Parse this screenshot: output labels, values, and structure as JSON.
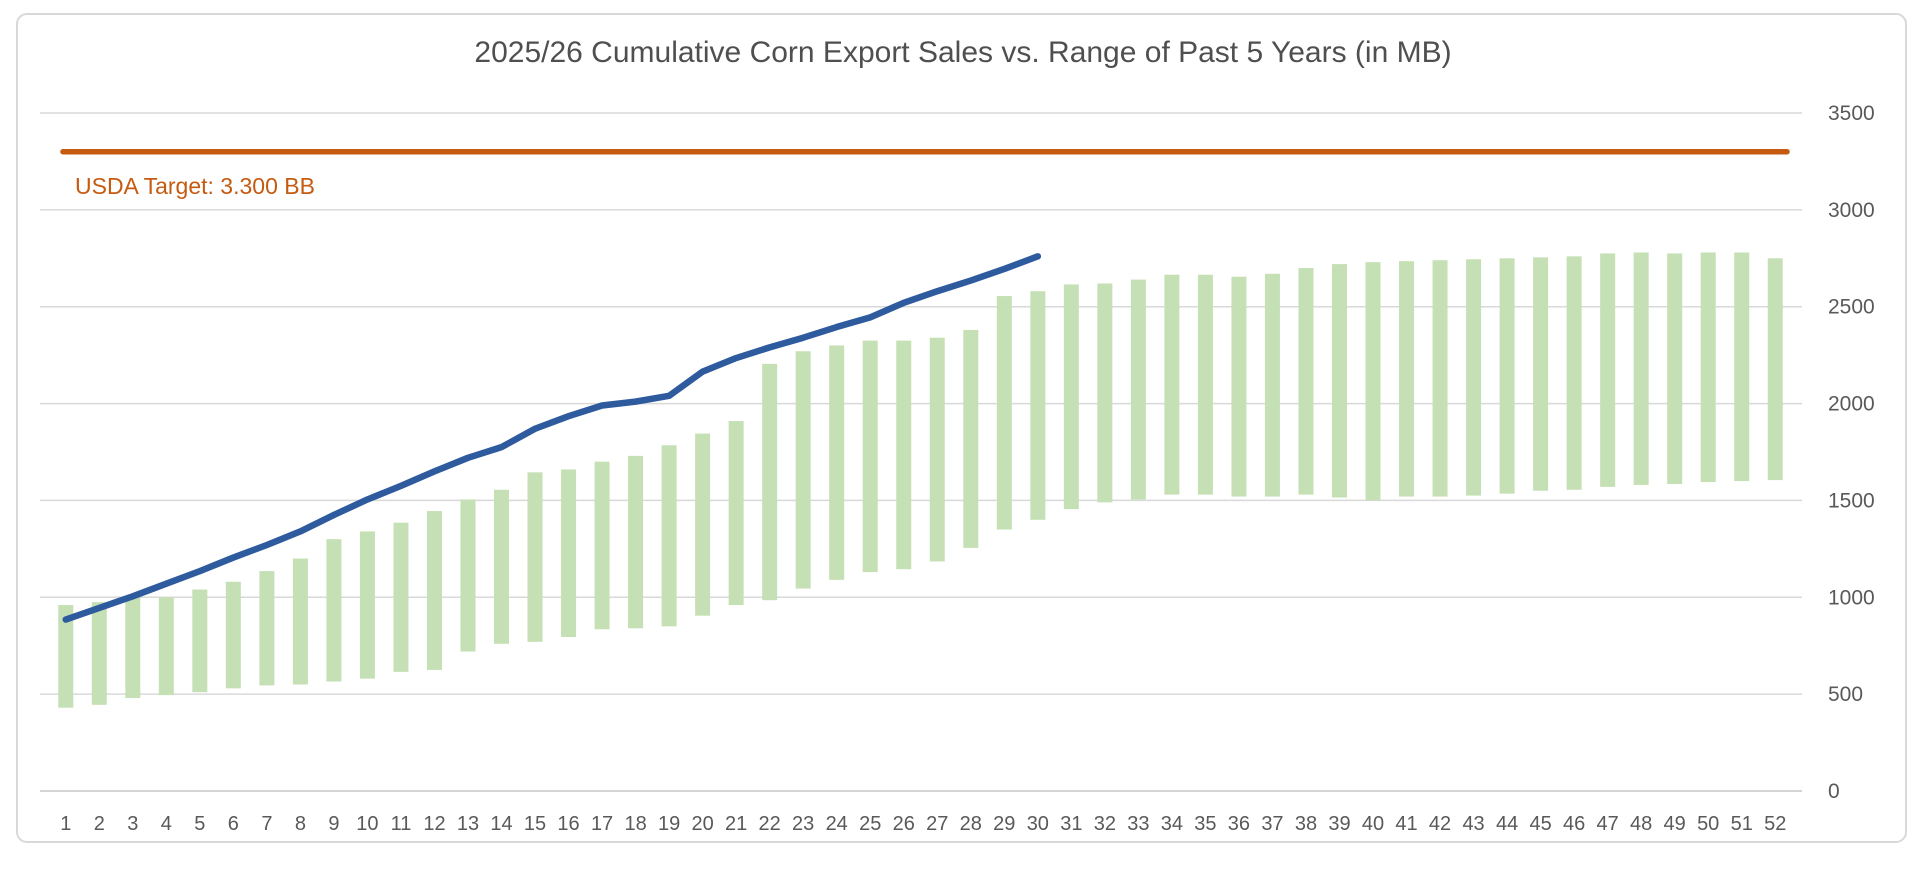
{
  "chart_data": {
    "type": "combo",
    "title": "2025/26 Cumulative Corn Export Sales vs. Range of Past 5 Years (in MB)",
    "xlabel": "",
    "ylabel": "",
    "categories": [
      1,
      2,
      3,
      4,
      5,
      6,
      7,
      8,
      9,
      10,
      11,
      12,
      13,
      14,
      15,
      16,
      17,
      18,
      19,
      20,
      21,
      22,
      23,
      24,
      25,
      26,
      27,
      28,
      29,
      30,
      31,
      32,
      33,
      34,
      35,
      36,
      37,
      38,
      39,
      40,
      41,
      42,
      43,
      44,
      45,
      46,
      47,
      48,
      49,
      50,
      51,
      52
    ],
    "y_ticks": [
      0,
      500,
      1000,
      1500,
      2000,
      2500,
      3000,
      3500
    ],
    "ylim": [
      0,
      3500
    ],
    "grid": true,
    "legend_position": "none",
    "y_axis_side": "right",
    "series": [
      {
        "name": "Range of Past 5 Years",
        "type": "floating_bar",
        "color": "#C5E0B4",
        "low": [
          430,
          445,
          480,
          495,
          510,
          530,
          545,
          550,
          565,
          580,
          615,
          625,
          720,
          760,
          770,
          795,
          835,
          840,
          850,
          905,
          960,
          985,
          1045,
          1090,
          1130,
          1145,
          1185,
          1255,
          1350,
          1400,
          1455,
          1490,
          1505,
          1530,
          1530,
          1520,
          1520,
          1530,
          1515,
          1500,
          1520,
          1520,
          1525,
          1535,
          1550,
          1555,
          1570,
          1580,
          1585,
          1595,
          1600,
          1605
        ],
        "high": [
          960,
          975,
          1000,
          1000,
          1040,
          1080,
          1135,
          1200,
          1300,
          1340,
          1385,
          1445,
          1505,
          1555,
          1645,
          1660,
          1700,
          1730,
          1785,
          1845,
          1910,
          2205,
          2270,
          2300,
          2325,
          2325,
          2340,
          2380,
          2555,
          2580,
          2615,
          2620,
          2640,
          2665,
          2665,
          2655,
          2670,
          2700,
          2720,
          2730,
          2735,
          2740,
          2745,
          2750,
          2755,
          2760,
          2775,
          2780,
          2775,
          2780,
          2780,
          2750
        ]
      },
      {
        "name": "2025/26 Cumulative Export Sales",
        "type": "line",
        "color": "#2E5A9E",
        "start_week": 1,
        "values": [
          885,
          945,
          1005,
          1070,
          1135,
          1205,
          1270,
          1340,
          1425,
          1505,
          1575,
          1650,
          1720,
          1775,
          1870,
          1935,
          1990,
          2010,
          2040,
          2165,
          2235,
          2290,
          2340,
          2395,
          2445,
          2520,
          2580,
          2635,
          2695,
          2760
        ]
      },
      {
        "name": "USDA Target",
        "type": "reference_line",
        "color": "#C55A11",
        "value": 3300,
        "label": "USDA Target: 3.300 BB"
      }
    ]
  },
  "colors": {
    "background": "#FFFFFF",
    "border": "#D9D9D9",
    "gridline": "#D9D9D9",
    "zero_line": "#C6C6C6",
    "axis_text": "#595959",
    "title_text": "#4F4F4F",
    "bar": "#C5E0B4",
    "line": "#2E5A9E",
    "target": "#C55A11"
  }
}
